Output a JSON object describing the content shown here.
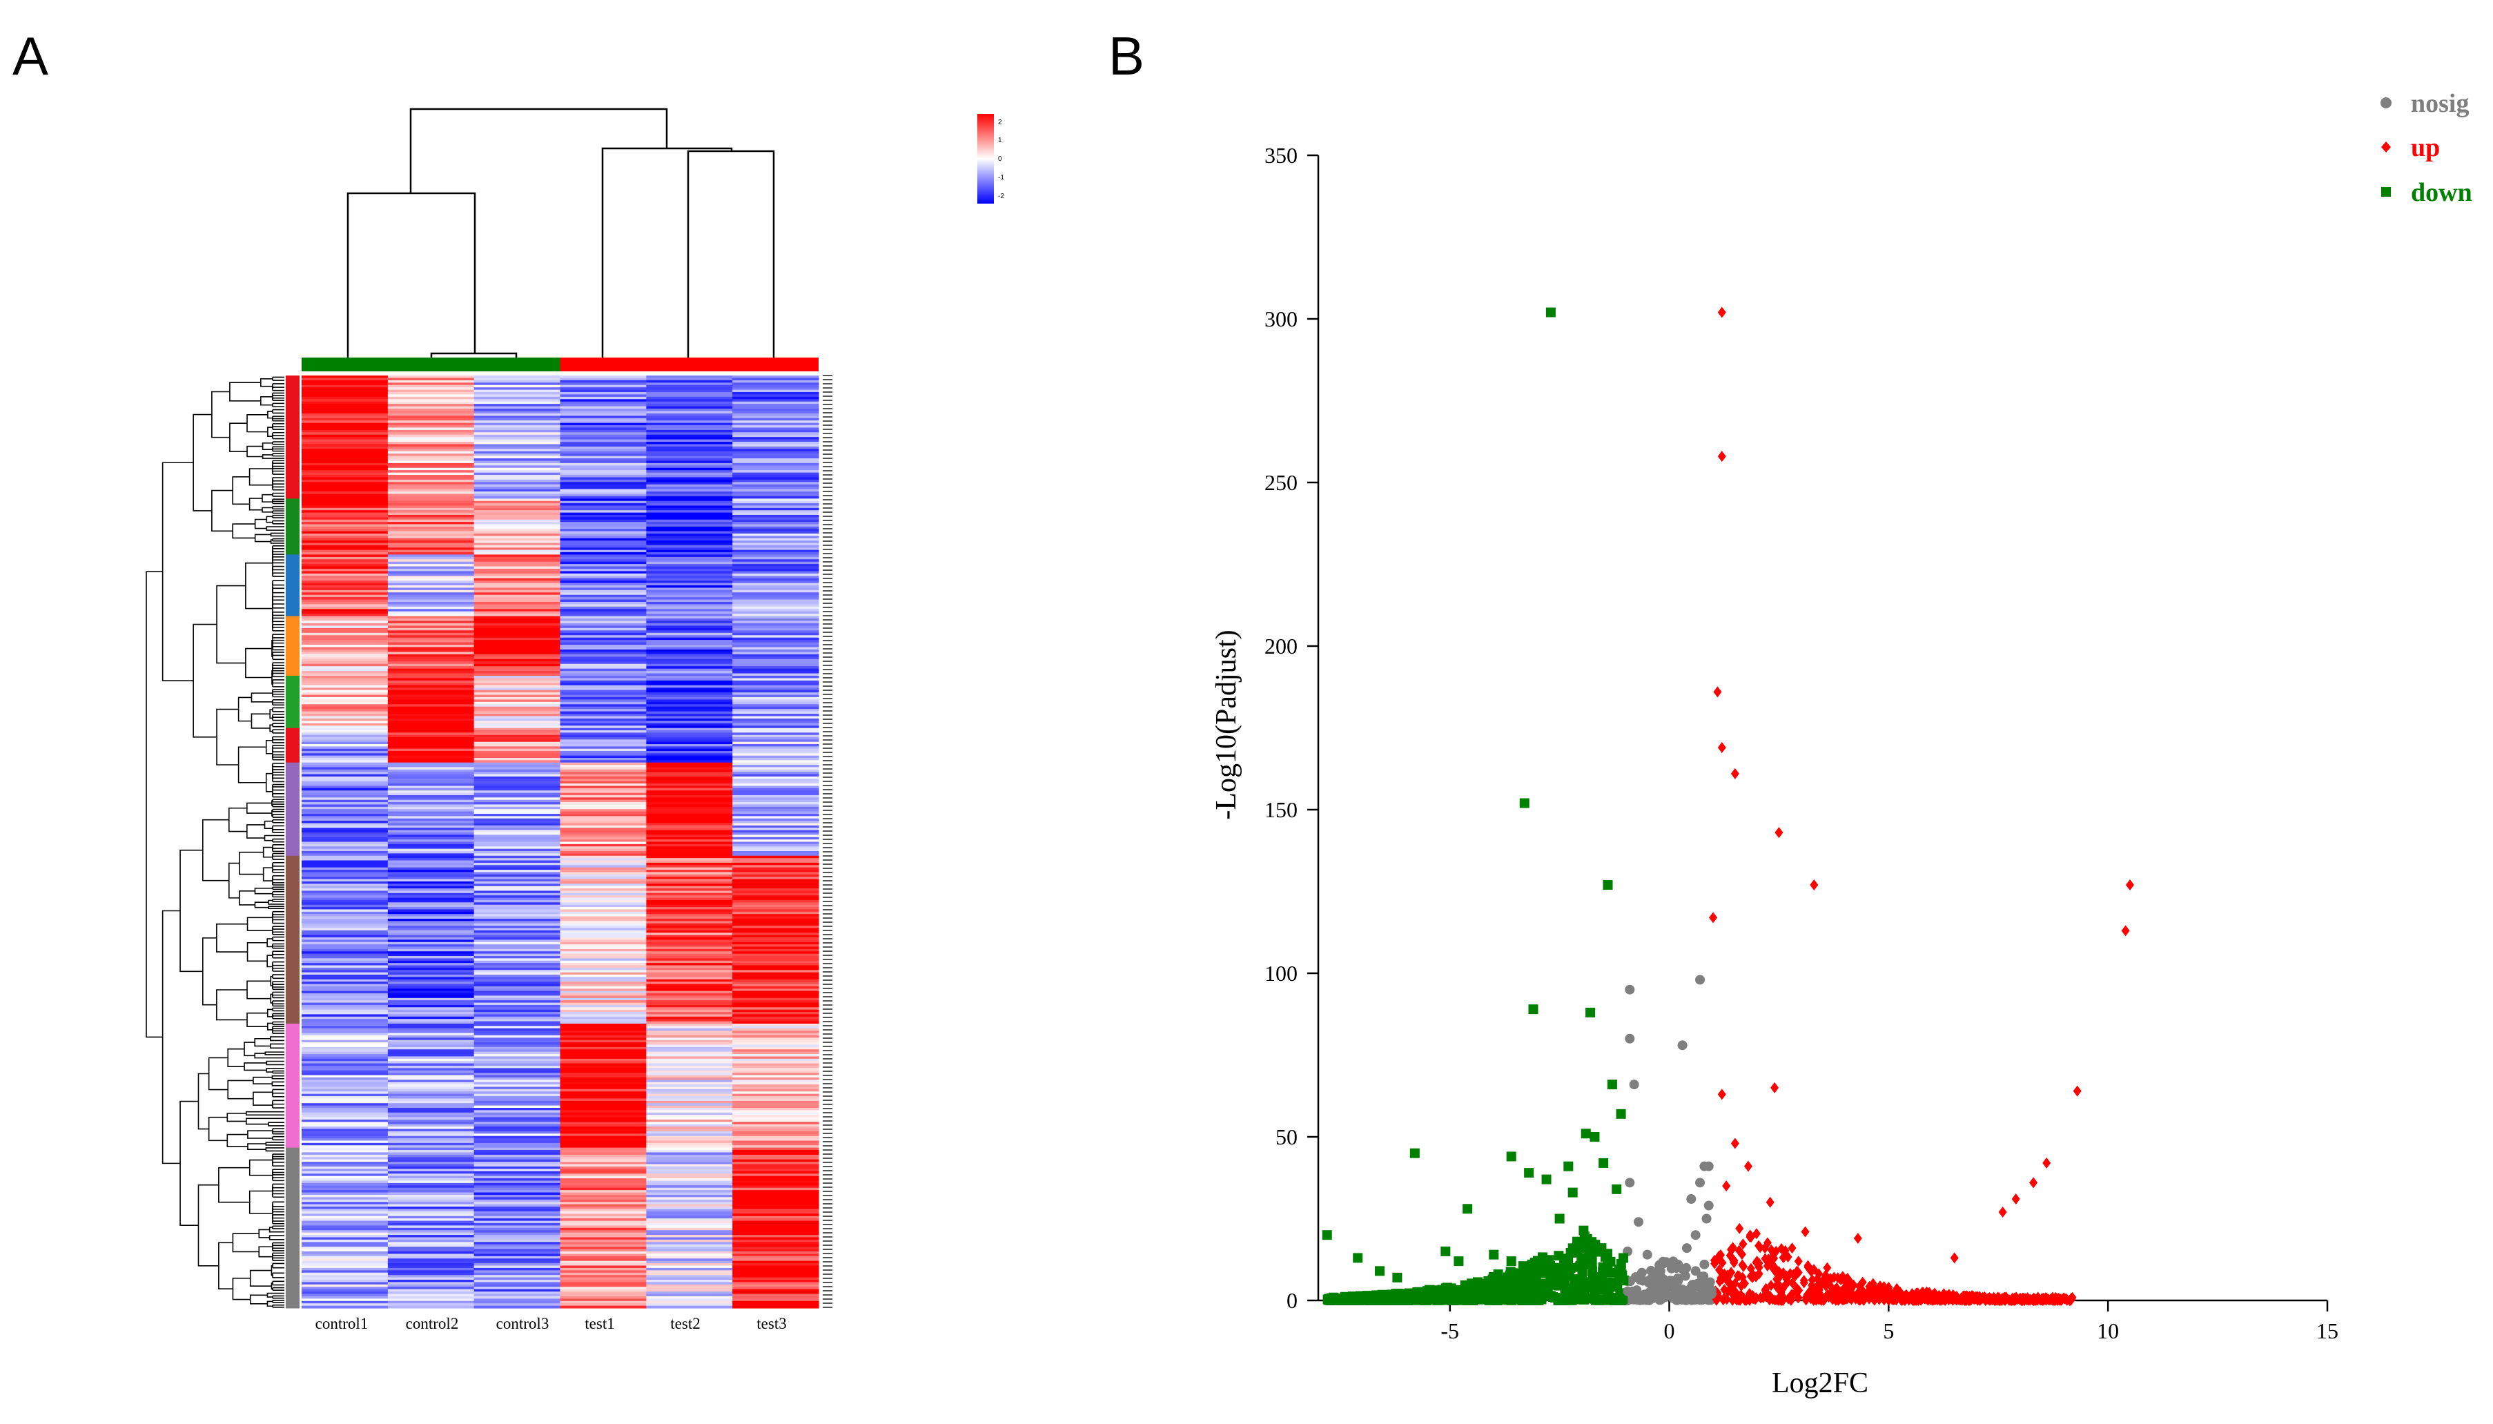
{
  "chart_data": [
    {
      "panel": "A",
      "type": "heatmap",
      "columns": [
        "control1",
        "control2",
        "control3",
        "test1",
        "test2",
        "test3"
      ],
      "column_groups": [
        {
          "name": "control",
          "color": "#008000",
          "columns": [
            "control1",
            "control2",
            "control3"
          ]
        },
        {
          "name": "test",
          "color": "#ff0000",
          "columns": [
            "test1",
            "test2",
            "test3"
          ]
        }
      ],
      "colorbar": {
        "ticks": [
          "2",
          "1",
          "0",
          "-1",
          "-2"
        ],
        "low_color": "#0000ff",
        "mid_color": "#ffffff",
        "high_color": "#ff0000"
      },
      "row_clusters": [
        {
          "color": "#e8101a",
          "fraction": 0.132,
          "profile": [
            2.0,
            0.7,
            -0.6,
            -1.1,
            -1.3,
            -1.1
          ]
        },
        {
          "color": "#138a1b",
          "fraction": 0.06,
          "profile": [
            1.6,
            1.1,
            0.4,
            -1.2,
            -1.7,
            -0.9
          ]
        },
        {
          "color": "#1f77c4",
          "fraction": 0.066,
          "profile": [
            1.3,
            -0.4,
            1.0,
            -1.1,
            -1.4,
            -0.9
          ]
        },
        {
          "color": "#ff8c1a",
          "fraction": 0.064,
          "profile": [
            0.5,
            1.3,
            2.0,
            -1.0,
            -1.2,
            -1.0
          ]
        },
        {
          "color": "#22a02c",
          "fraction": 0.056,
          "profile": [
            0.6,
            2.0,
            0.3,
            -0.9,
            -1.4,
            -0.8
          ]
        },
        {
          "color": "#e8101a",
          "fraction": 0.037,
          "profile": [
            -0.8,
            2.0,
            1.0,
            -1.0,
            -1.5,
            -0.6
          ]
        },
        {
          "color": "#9467bd",
          "fraction": 0.1,
          "profile": [
            -1.0,
            -0.9,
            -0.8,
            0.8,
            2.0,
            -0.6
          ]
        },
        {
          "color": "#8c564b",
          "fraction": 0.18,
          "profile": [
            -1.0,
            -1.2,
            -0.9,
            0.2,
            1.3,
            1.8
          ]
        },
        {
          "color": "#ef6ecf",
          "fraction": 0.133,
          "profile": [
            -0.7,
            -0.8,
            -0.8,
            2.0,
            0.1,
            0.5
          ]
        },
        {
          "color": "#7f7f7f",
          "fraction": 0.172,
          "profile": [
            -0.6,
            -0.9,
            -1.0,
            0.9,
            -0.3,
            1.8
          ]
        }
      ]
    },
    {
      "panel": "B",
      "type": "scatter",
      "title": "",
      "xlabel": "Log2FC",
      "ylabel": "-Log10(Padjust)",
      "xlim": [
        -8,
        15
      ],
      "ylim": [
        0,
        350
      ],
      "xticks": [
        -5,
        0,
        5,
        10,
        15
      ],
      "yticks": [
        0,
        50,
        100,
        150,
        200,
        250,
        300,
        350
      ],
      "legend_position": "top-right",
      "series": [
        {
          "name": "nosig",
          "marker": "circle",
          "color": "#7f7f7f",
          "points": [
            [
              -0.9,
              95
            ],
            [
              -0.9,
              80
            ],
            [
              -0.8,
              66
            ],
            [
              -0.2,
              9
            ],
            [
              0.3,
              78
            ],
            [
              0.7,
              98
            ],
            [
              0.8,
              41
            ],
            [
              0.7,
              36
            ],
            [
              0.9,
              29
            ],
            [
              0.6,
              20
            ],
            [
              -0.9,
              36
            ],
            [
              -0.7,
              24
            ],
            [
              -0.5,
              14
            ],
            [
              0.1,
              4
            ],
            [
              -0.3,
              2
            ],
            [
              0.4,
              16
            ],
            [
              0.8,
              11
            ],
            [
              -0.6,
              6
            ],
            [
              0.9,
              41
            ],
            [
              0.5,
              31
            ],
            [
              -0.4,
              3
            ],
            [
              0.2,
              6
            ],
            [
              0.6,
              9
            ],
            [
              0.85,
              25
            ],
            [
              -0.95,
              15
            ],
            [
              0.4,
              3
            ],
            [
              -0.1,
              1
            ],
            [
              0.2,
              11
            ]
          ]
        },
        {
          "name": "up",
          "marker": "diamond",
          "color": "#ff0000",
          "points": [
            [
              1.2,
              302
            ],
            [
              1.2,
              258
            ],
            [
              1.1,
              186
            ],
            [
              1.2,
              169
            ],
            [
              1.5,
              161
            ],
            [
              2.5,
              143
            ],
            [
              3.3,
              127
            ],
            [
              1.0,
              117
            ],
            [
              10.5,
              127
            ],
            [
              10.4,
              113
            ],
            [
              9.3,
              64
            ],
            [
              2.4,
              65
            ],
            [
              1.2,
              63
            ],
            [
              1.5,
              48
            ],
            [
              8.6,
              42
            ],
            [
              7.6,
              27
            ],
            [
              1.8,
              41
            ],
            [
              2.3,
              30
            ],
            [
              3.1,
              21
            ],
            [
              4.3,
              19
            ],
            [
              6.5,
              13
            ],
            [
              5.0,
              4
            ],
            [
              2.0,
              12
            ],
            [
              1.3,
              35
            ],
            [
              1.6,
              22
            ],
            [
              2.8,
              16
            ],
            [
              3.6,
              10
            ],
            [
              4.0,
              6
            ],
            [
              8.3,
              36
            ],
            [
              7.9,
              31
            ]
          ]
        },
        {
          "name": "down",
          "marker": "square",
          "color": "#008000",
          "points": [
            [
              -2.7,
              302
            ],
            [
              -3.3,
              152
            ],
            [
              -1.4,
              127
            ],
            [
              -3.1,
              89
            ],
            [
              -1.8,
              88
            ],
            [
              -5.8,
              45
            ],
            [
              -3.6,
              44
            ],
            [
              -1.3,
              66
            ],
            [
              -1.1,
              57
            ],
            [
              -1.9,
              51
            ],
            [
              -1.7,
              50
            ],
            [
              -2.3,
              41
            ],
            [
              -2.8,
              37
            ],
            [
              -3.2,
              39
            ],
            [
              -1.5,
              42
            ],
            [
              -4.6,
              28
            ],
            [
              -7.8,
              20
            ],
            [
              -7.1,
              13
            ],
            [
              -6.6,
              9
            ],
            [
              -5.1,
              15
            ],
            [
              -4.8,
              12
            ],
            [
              -2.5,
              25
            ],
            [
              -2.1,
              18
            ],
            [
              -1.6,
              15
            ],
            [
              -3.9,
              8
            ],
            [
              -6.2,
              7
            ],
            [
              -4.0,
              14
            ],
            [
              -3.6,
              12
            ],
            [
              -2.2,
              33
            ],
            [
              -1.2,
              34
            ]
          ]
        }
      ]
    }
  ],
  "figure": {
    "panel_labels": [
      "A",
      "B"
    ]
  }
}
